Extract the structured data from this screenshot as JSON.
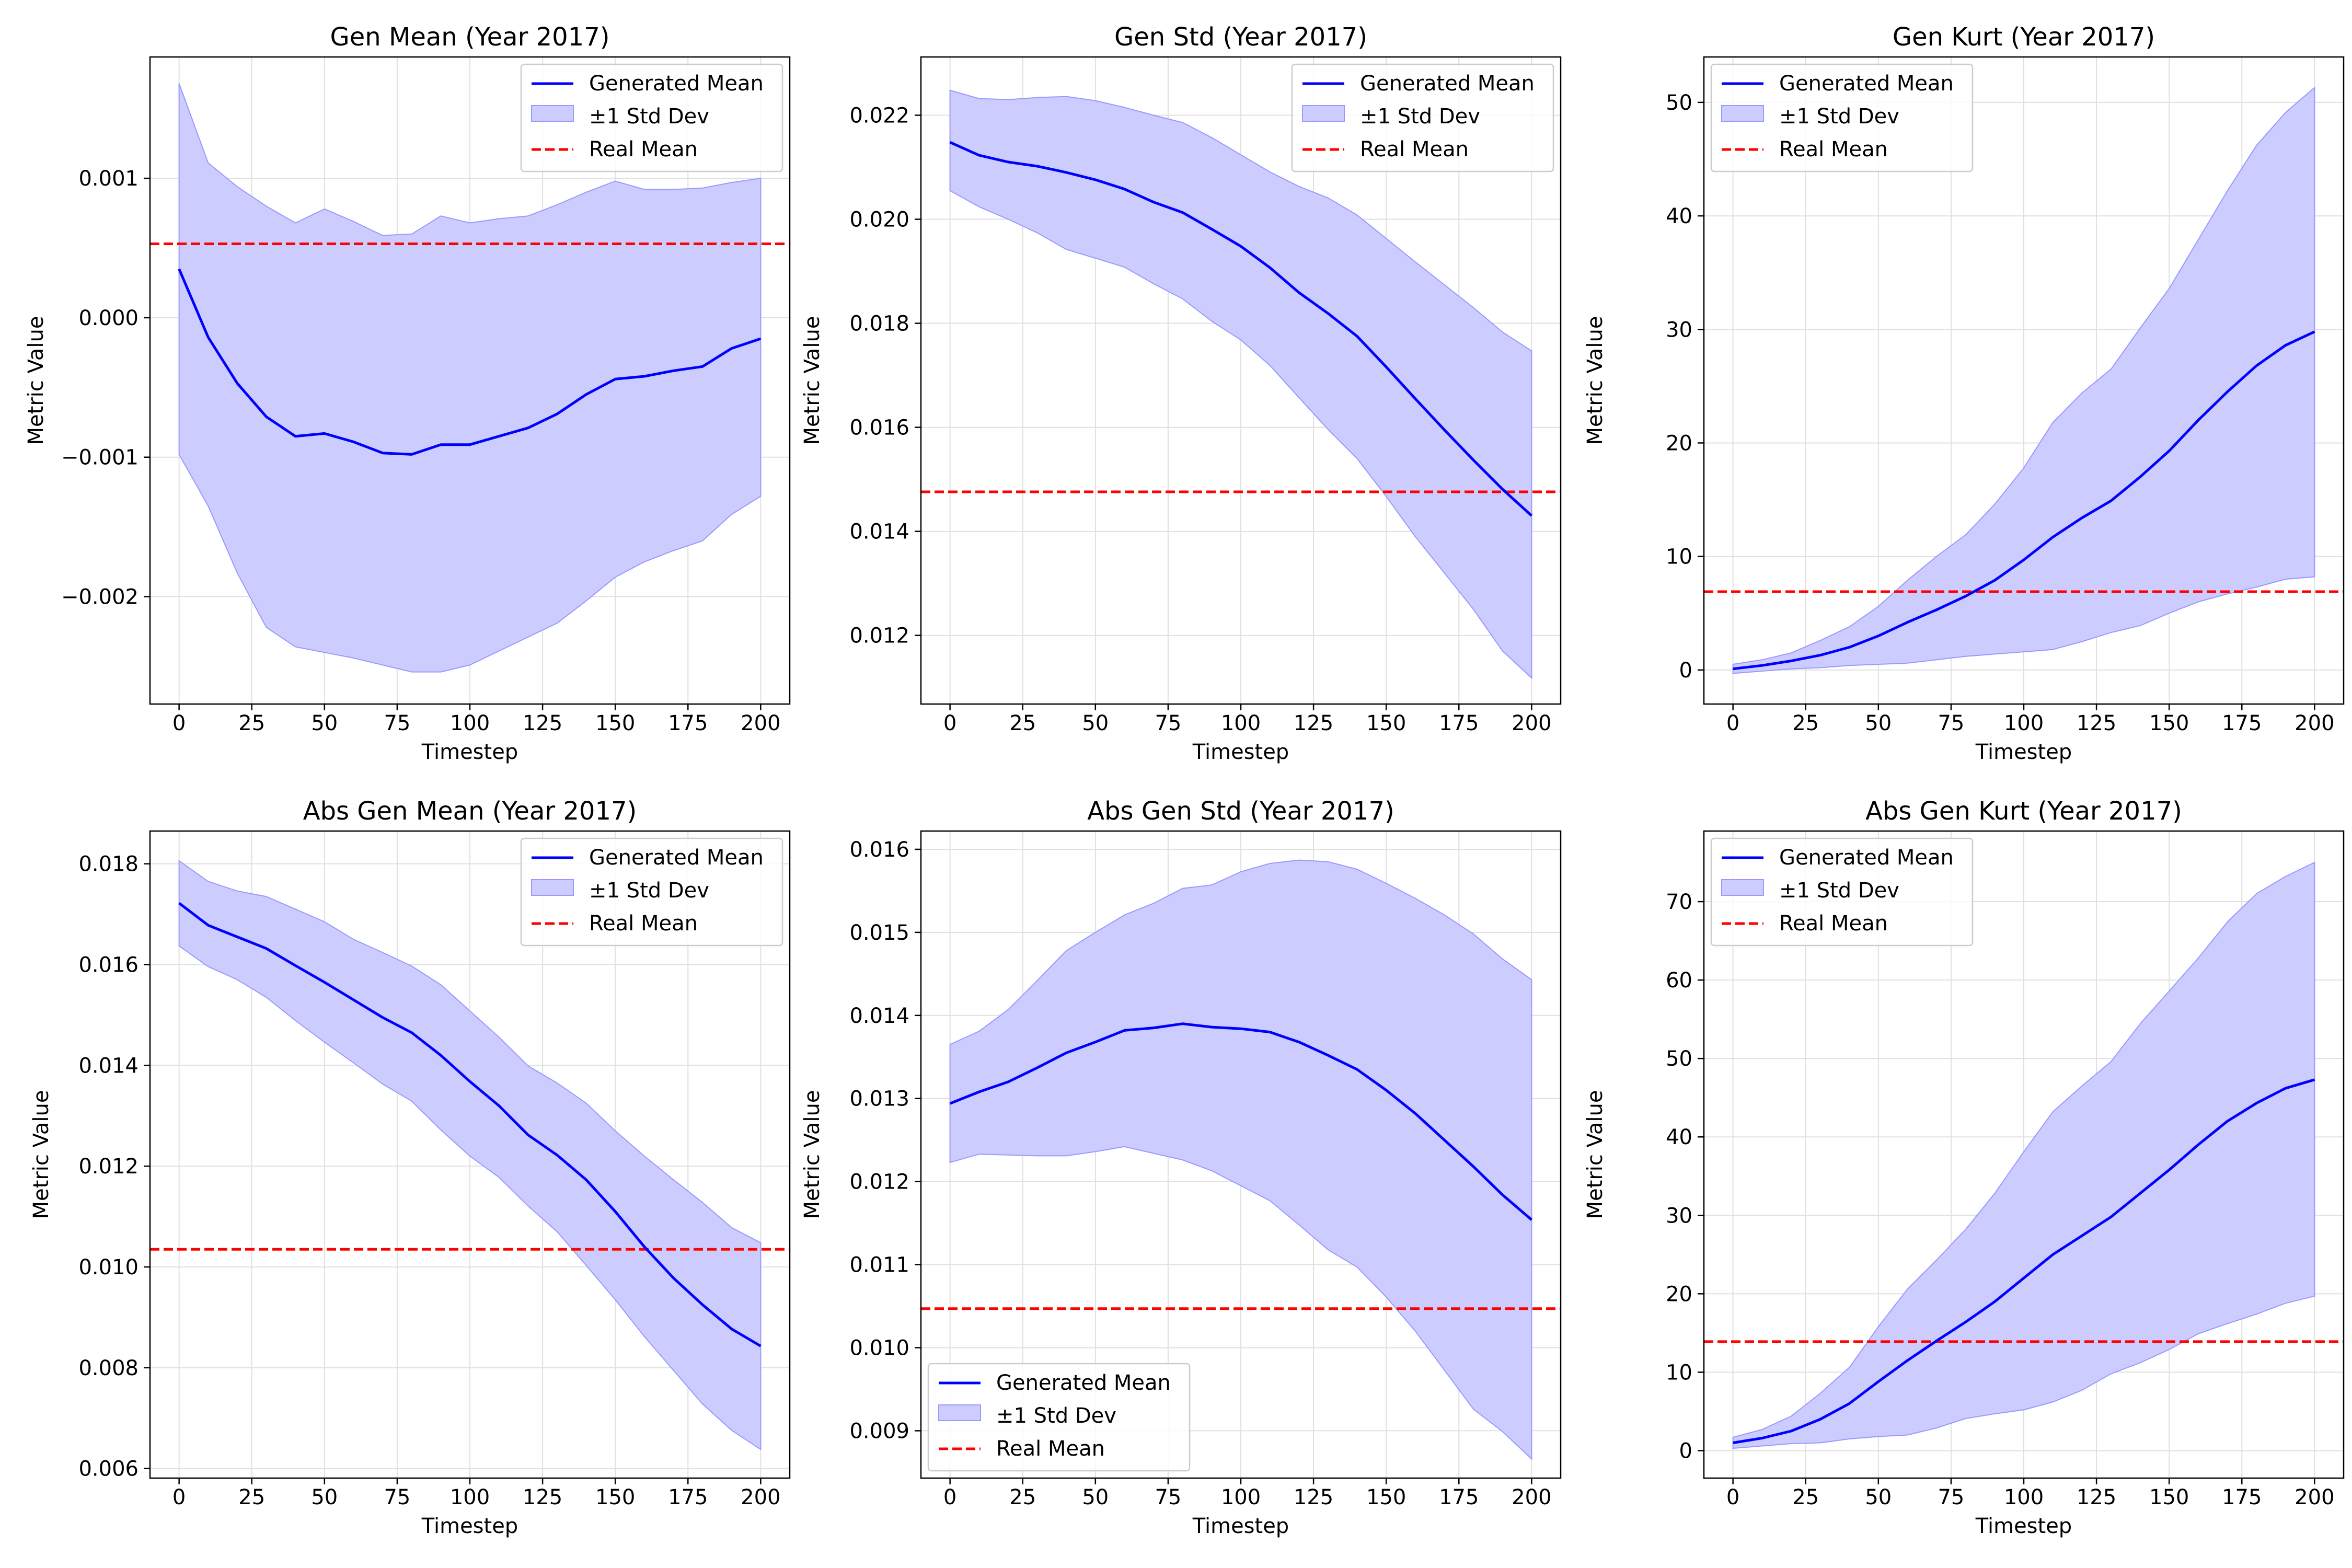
{
  "colors": {
    "generated": "#0000ff",
    "band_fill": "#ccccff",
    "band_edge": "#9999ff",
    "real": "#ff0000",
    "grid": "#e0e0e0"
  },
  "chart_data": [
    {
      "type": "line",
      "title": "Gen Mean (Year 2017)",
      "xlabel": "Timestep",
      "ylabel": "Metric Value",
      "xlim": [
        -10,
        210
      ],
      "ylim": [
        -0.00277,
        0.00187
      ],
      "xticks": [
        0,
        25,
        50,
        75,
        100,
        125,
        150,
        175,
        200
      ],
      "yticks": [
        -0.002,
        -0.001,
        0.0,
        0.001
      ],
      "ytick_labels": [
        "−0.002",
        "−0.001",
        "0.000",
        "0.001"
      ],
      "grid": true,
      "legend": {
        "loc": "upper right",
        "entries": [
          "Generated Mean",
          "±1 Std Dev",
          "Real Mean"
        ]
      },
      "x": [
        0,
        10,
        20,
        30,
        40,
        50,
        60,
        70,
        80,
        90,
        100,
        110,
        120,
        130,
        140,
        150,
        160,
        170,
        180,
        190,
        200
      ],
      "series": [
        {
          "name": "Generated Mean",
          "values": [
            0.00035,
            -0.00014,
            -0.00047,
            -0.00071,
            -0.00085,
            -0.00083,
            -0.00089,
            -0.00097,
            -0.00098,
            -0.00091,
            -0.00091,
            -0.00085,
            -0.00079,
            -0.00069,
            -0.00055,
            -0.00044,
            -0.00042,
            -0.00038,
            -0.00035,
            -0.00022,
            -0.00015
          ]
        },
        {
          "name": "±1 Std Dev",
          "lower": [
            -0.00098,
            -0.00135,
            -0.00183,
            -0.00222,
            -0.00236,
            -0.0024,
            -0.00244,
            -0.00249,
            -0.00254,
            -0.00254,
            -0.00249,
            -0.00239,
            -0.00229,
            -0.00219,
            -0.00203,
            -0.00186,
            -0.00175,
            -0.00167,
            -0.0016,
            -0.00141,
            -0.00128
          ],
          "upper": [
            0.00168,
            0.00111,
            0.00094,
            0.0008,
            0.00068,
            0.00078,
            0.00069,
            0.00059,
            0.0006,
            0.00073,
            0.00068,
            0.00071,
            0.00073,
            0.00081,
            0.0009,
            0.00098,
            0.00092,
            0.00092,
            0.00093,
            0.00097,
            0.001
          ]
        }
      ],
      "real_mean": 0.00053
    },
    {
      "type": "line",
      "title": "Gen Std (Year 2017)",
      "xlabel": "Timestep",
      "ylabel": "Metric Value",
      "xlim": [
        -10,
        210
      ],
      "ylim": [
        0.01068,
        0.02312
      ],
      "xticks": [
        0,
        25,
        50,
        75,
        100,
        125,
        150,
        175,
        200
      ],
      "yticks": [
        0.012,
        0.014,
        0.016,
        0.018,
        0.02,
        0.022
      ],
      "ytick_labels": [
        "0.012",
        "0.014",
        "0.016",
        "0.018",
        "0.020",
        "0.022"
      ],
      "grid": true,
      "legend": {
        "loc": "upper right",
        "entries": [
          "Generated Mean",
          "±1 Std Dev",
          "Real Mean"
        ]
      },
      "x": [
        0,
        10,
        20,
        30,
        40,
        50,
        60,
        70,
        80,
        90,
        100,
        110,
        120,
        130,
        140,
        150,
        160,
        170,
        180,
        190,
        200
      ],
      "series": [
        {
          "name": "Generated Mean",
          "values": [
            0.02148,
            0.02123,
            0.0211,
            0.02102,
            0.0209,
            0.02076,
            0.02058,
            0.02033,
            0.02013,
            0.01981,
            0.01948,
            0.01907,
            0.01859,
            0.01819,
            0.01775,
            0.01716,
            0.01655,
            0.01595,
            0.01537,
            0.01481,
            0.0143
          ]
        },
        {
          "name": "±1 Std Dev",
          "lower": [
            0.02055,
            0.02024,
            0.02,
            0.01974,
            0.01942,
            0.01925,
            0.01908,
            0.01876,
            0.01847,
            0.01804,
            0.01768,
            0.01719,
            0.01657,
            0.01596,
            0.0154,
            0.01467,
            0.0139,
            0.0132,
            0.0125,
            0.0117,
            0.01118
          ],
          "upper": [
            0.02248,
            0.02232,
            0.0223,
            0.02234,
            0.02236,
            0.02228,
            0.02215,
            0.022,
            0.02186,
            0.02157,
            0.02124,
            0.02091,
            0.02063,
            0.02041,
            0.02008,
            0.01963,
            0.01918,
            0.01874,
            0.0183,
            0.01783,
            0.01747
          ]
        }
      ],
      "real_mean": 0.01476
    },
    {
      "type": "line",
      "title": "Gen Kurt (Year 2017)",
      "xlabel": "Timestep",
      "ylabel": "Metric Value",
      "xlim": [
        -10,
        210
      ],
      "ylim": [
        -3.0,
        54.0
      ],
      "xticks": [
        0,
        25,
        50,
        75,
        100,
        125,
        150,
        175,
        200
      ],
      "yticks": [
        0,
        10,
        20,
        30,
        40,
        50
      ],
      "ytick_labels": [
        "0",
        "10",
        "20",
        "30",
        "40",
        "50"
      ],
      "grid": true,
      "legend": {
        "loc": "upper left",
        "entries": [
          "Generated Mean",
          "±1 Std Dev",
          "Real Mean"
        ]
      },
      "x": [
        0,
        10,
        20,
        30,
        40,
        50,
        60,
        70,
        80,
        90,
        100,
        110,
        120,
        130,
        140,
        150,
        160,
        170,
        180,
        190,
        200
      ],
      "series": [
        {
          "name": "Generated Mean",
          "values": [
            0.1,
            0.4,
            0.8,
            1.3,
            2.0,
            3.0,
            4.2,
            5.3,
            6.5,
            7.9,
            9.7,
            11.7,
            13.4,
            14.9,
            17.0,
            19.3,
            22.0,
            24.5,
            26.8,
            28.6,
            29.8
          ]
        },
        {
          "name": "±1 Std Dev",
          "lower": [
            -0.3,
            -0.1,
            0.1,
            0.2,
            0.4,
            0.5,
            0.6,
            0.9,
            1.2,
            1.4,
            1.6,
            1.8,
            2.5,
            3.3,
            3.9,
            5.0,
            6.0,
            6.7,
            7.3,
            8.0,
            8.2
          ],
          "upper": [
            0.5,
            0.9,
            1.5,
            2.6,
            3.8,
            5.6,
            7.9,
            10.0,
            11.9,
            14.6,
            17.8,
            21.8,
            24.4,
            26.5,
            30.1,
            33.6,
            37.9,
            42.2,
            46.2,
            49.1,
            51.3
          ]
        }
      ],
      "real_mean": 6.9
    },
    {
      "type": "line",
      "title": "Abs Gen Mean (Year 2017)",
      "xlabel": "Timestep",
      "ylabel": "Metric Value",
      "xlim": [
        -10,
        210
      ],
      "ylim": [
        0.00581,
        0.01865
      ],
      "xticks": [
        0,
        25,
        50,
        75,
        100,
        125,
        150,
        175,
        200
      ],
      "yticks": [
        0.006,
        0.008,
        0.01,
        0.012,
        0.014,
        0.016,
        0.018
      ],
      "ytick_labels": [
        "0.006",
        "0.008",
        "0.010",
        "0.012",
        "0.014",
        "0.016",
        "0.018"
      ],
      "grid": true,
      "legend": {
        "loc": "upper right",
        "entries": [
          "Generated Mean",
          "±1 Std Dev",
          "Real Mean"
        ]
      },
      "x": [
        0,
        10,
        20,
        30,
        40,
        50,
        60,
        70,
        80,
        90,
        100,
        110,
        120,
        130,
        140,
        150,
        160,
        170,
        180,
        190,
        200
      ],
      "series": [
        {
          "name": "Generated Mean",
          "values": [
            0.01722,
            0.01678,
            0.01655,
            0.01632,
            0.01598,
            0.01565,
            0.0153,
            0.01495,
            0.01465,
            0.0142,
            0.01368,
            0.0132,
            0.01262,
            0.01222,
            0.01173,
            0.0111,
            0.0104,
            0.00978,
            0.00925,
            0.00877,
            0.00843
          ]
        },
        {
          "name": "±1 Std Dev",
          "lower": [
            0.01637,
            0.01596,
            0.0157,
            0.01535,
            0.01489,
            0.01446,
            0.01405,
            0.01363,
            0.01329,
            0.01272,
            0.0122,
            0.01178,
            0.01121,
            0.0107,
            0.01003,
            0.00935,
            0.00862,
            0.00795,
            0.00728,
            0.00676,
            0.00638
          ],
          "upper": [
            0.01806,
            0.01765,
            0.01746,
            0.01735,
            0.0171,
            0.01685,
            0.0165,
            0.01624,
            0.01597,
            0.0156,
            0.01508,
            0.01456,
            0.01399,
            0.01365,
            0.01325,
            0.0127,
            0.0122,
            0.01173,
            0.01128,
            0.01078,
            0.01048
          ]
        }
      ],
      "real_mean": 0.01035
    },
    {
      "type": "line",
      "title": "Abs Gen Std (Year 2017)",
      "xlabel": "Timestep",
      "ylabel": "Metric Value",
      "xlim": [
        -10,
        210
      ],
      "ylim": [
        0.00843,
        0.01622
      ],
      "xticks": [
        0,
        25,
        50,
        75,
        100,
        125,
        150,
        175,
        200
      ],
      "yticks": [
        0.009,
        0.01,
        0.011,
        0.012,
        0.013,
        0.014,
        0.015,
        0.016
      ],
      "ytick_labels": [
        "0.009",
        "0.010",
        "0.011",
        "0.012",
        "0.013",
        "0.014",
        "0.015",
        "0.016"
      ],
      "grid": true,
      "legend": {
        "loc": "lower left",
        "entries": [
          "Generated Mean",
          "±1 Std Dev",
          "Real Mean"
        ]
      },
      "x": [
        0,
        10,
        20,
        30,
        40,
        50,
        60,
        70,
        80,
        90,
        100,
        110,
        120,
        130,
        140,
        150,
        160,
        170,
        180,
        190,
        200
      ],
      "series": [
        {
          "name": "Generated Mean",
          "values": [
            0.01294,
            0.01308,
            0.0132,
            0.01337,
            0.01355,
            0.01368,
            0.01382,
            0.01385,
            0.0139,
            0.01386,
            0.01384,
            0.0138,
            0.01368,
            0.01352,
            0.01335,
            0.0131,
            0.01282,
            0.0125,
            0.01218,
            0.01184,
            0.01154
          ]
        },
        {
          "name": "±1 Std Dev",
          "lower": [
            0.01223,
            0.01233,
            0.01232,
            0.01231,
            0.01231,
            0.01236,
            0.01242,
            0.01234,
            0.01226,
            0.01213,
            0.01195,
            0.01177,
            0.01148,
            0.01118,
            0.01097,
            0.01061,
            0.0102,
            0.00973,
            0.00926,
            0.00899,
            0.00866
          ],
          "upper": [
            0.01365,
            0.01381,
            0.01407,
            0.01442,
            0.01478,
            0.015,
            0.01521,
            0.01535,
            0.01553,
            0.01557,
            0.01573,
            0.01583,
            0.01587,
            0.01585,
            0.01576,
            0.01559,
            0.01541,
            0.01521,
            0.01498,
            0.01468,
            0.01443
          ]
        }
      ],
      "real_mean": 0.01047
    },
    {
      "type": "line",
      "title": "Abs Gen Kurt (Year 2017)",
      "xlabel": "Timestep",
      "ylabel": "Metric Value",
      "xlim": [
        -10,
        210
      ],
      "ylim": [
        -3.5,
        79.0
      ],
      "xticks": [
        0,
        25,
        50,
        75,
        100,
        125,
        150,
        175,
        200
      ],
      "yticks": [
        0,
        10,
        20,
        30,
        40,
        50,
        60,
        70
      ],
      "ytick_labels": [
        "0",
        "10",
        "20",
        "30",
        "40",
        "50",
        "60",
        "70"
      ],
      "grid": true,
      "legend": {
        "loc": "upper left",
        "entries": [
          "Generated Mean",
          "±1 Std Dev",
          "Real Mean"
        ]
      },
      "x": [
        0,
        10,
        20,
        30,
        40,
        50,
        60,
        70,
        80,
        90,
        100,
        110,
        120,
        130,
        140,
        150,
        160,
        170,
        180,
        190,
        200
      ],
      "series": [
        {
          "name": "Generated Mean",
          "values": [
            1.0,
            1.6,
            2.5,
            4.0,
            6.0,
            8.8,
            11.5,
            14.0,
            16.4,
            19.0,
            22.0,
            25.0,
            27.4,
            29.8,
            32.8,
            35.8,
            39.0,
            42.0,
            44.3,
            46.2,
            47.3
          ]
        },
        {
          "name": "±1 Std Dev",
          "lower": [
            0.3,
            0.6,
            0.9,
            1.0,
            1.5,
            1.8,
            2.0,
            2.9,
            4.1,
            4.7,
            5.2,
            6.2,
            7.7,
            9.8,
            11.2,
            12.9,
            14.9,
            16.2,
            17.4,
            18.8,
            19.7
          ],
          "upper": [
            1.7,
            2.7,
            4.4,
            7.3,
            10.6,
            15.8,
            20.6,
            24.3,
            28.2,
            32.8,
            38.1,
            43.2,
            46.5,
            49.6,
            54.4,
            58.6,
            62.8,
            67.4,
            71.0,
            73.2,
            75.0
          ]
        }
      ],
      "real_mean": 13.9
    }
  ]
}
